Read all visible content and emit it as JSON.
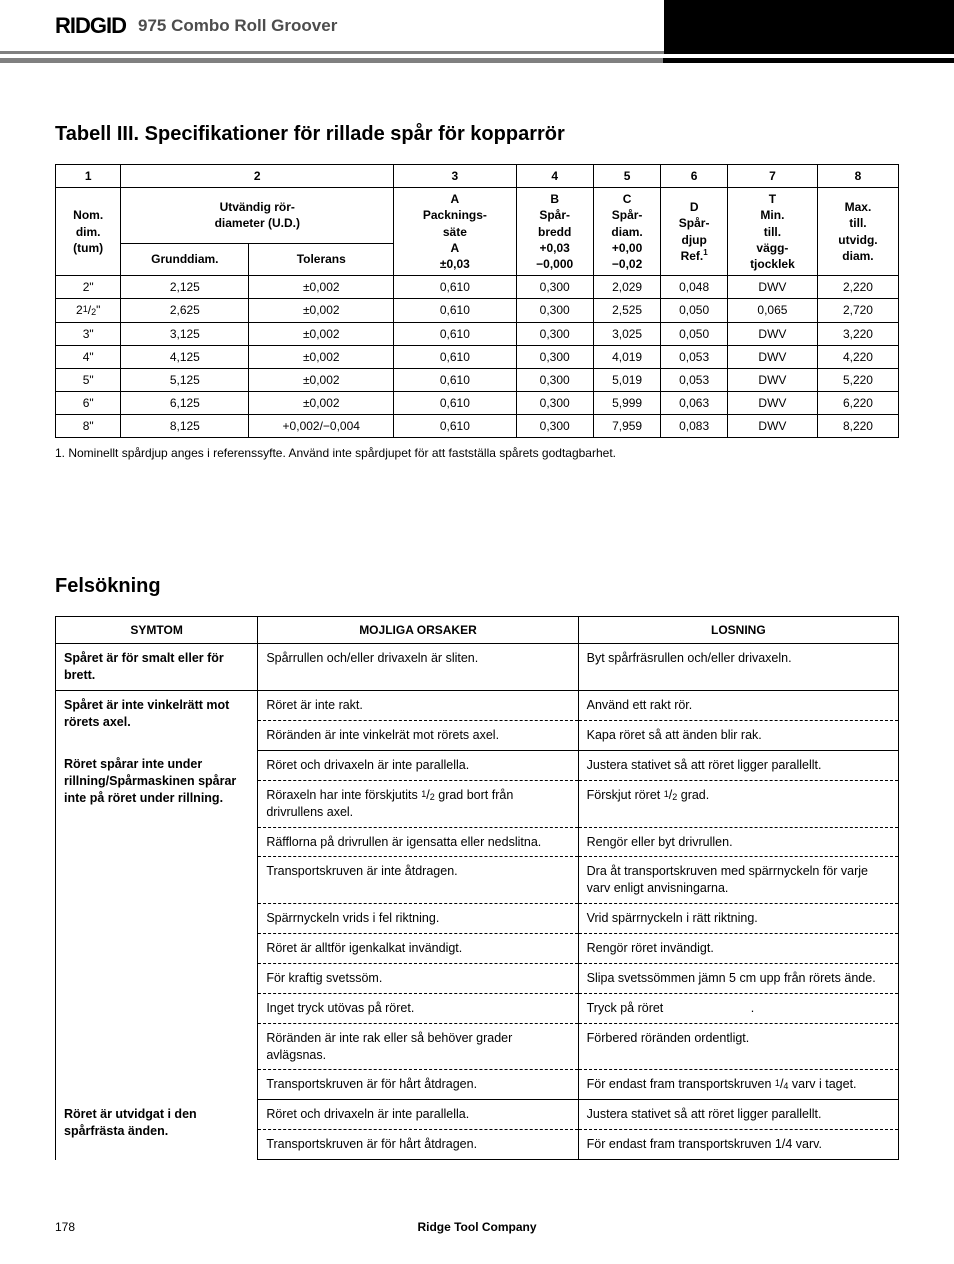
{
  "header": {
    "logo": "RIDGID",
    "title": "975 Combo Roll Groover"
  },
  "section1_title": "Tabell III. Specifikationer för rillade spår för kopparrör",
  "spec_table": {
    "col_nums": [
      "1",
      "2",
      "3",
      "4",
      "5",
      "6",
      "7",
      "8"
    ],
    "headers": {
      "c1": "Nom.\ndim.\n(tum)",
      "c2": "Utvändig rör-\ndiameter (U.D.)",
      "c2a": "Grunddiam.",
      "c2b": "Tolerans",
      "c3": "A\nPacknings-\nsäte\nA\n±0,03",
      "c4": "B\nSpår-\nbredd\n+0,03\n−0,000",
      "c5": "C\nSpår-\ndiam.\n+0,00\n−0,02",
      "c6": "D\nSpår-\ndjup\nRef.",
      "c6_sup": "1",
      "c7": "T\nMin.\ntill.\nvägg-\ntjocklek",
      "c8": "Max.\ntill.\nutvidg.\ndiam."
    },
    "rows": [
      {
        "nom": "2\"",
        "gd": "2,125",
        "tol": "±0,002",
        "a": "0,610",
        "b": "0,300",
        "c": "2,029",
        "d": "0,048",
        "t": "DWV",
        "max": "2,220"
      },
      {
        "nom": "2¹/₂\"",
        "gd": "2,625",
        "tol": "±0,002",
        "a": "0,610",
        "b": "0,300",
        "c": "2,525",
        "d": "0,050",
        "t": "0,065",
        "max": "2,720"
      },
      {
        "nom": "3\"",
        "gd": "3,125",
        "tol": "±0,002",
        "a": "0,610",
        "b": "0,300",
        "c": "3,025",
        "d": "0,050",
        "t": "DWV",
        "max": "3,220"
      },
      {
        "nom": "4\"",
        "gd": "4,125",
        "tol": "±0,002",
        "a": "0,610",
        "b": "0,300",
        "c": "4,019",
        "d": "0,053",
        "t": "DWV",
        "max": "4,220"
      },
      {
        "nom": "5\"",
        "gd": "5,125",
        "tol": "±0,002",
        "a": "0,610",
        "b": "0,300",
        "c": "5,019",
        "d": "0,053",
        "t": "DWV",
        "max": "5,220"
      },
      {
        "nom": "6\"",
        "gd": "6,125",
        "tol": "±0,002",
        "a": "0,610",
        "b": "0,300",
        "c": "5,999",
        "d": "0,063",
        "t": "DWV",
        "max": "6,220"
      },
      {
        "nom": "8\"",
        "gd": "8,125",
        "tol": "+0,002/−0,004",
        "a": "0,610",
        "b": "0,300",
        "c": "7,959",
        "d": "0,083",
        "t": "DWV",
        "max": "8,220"
      }
    ]
  },
  "footnote": "1. Nominellt spårdjup anges i referenssyfte. Använd inte spårdjupet för att fastställa spårets godtagbarhet.",
  "section2_title": "Felsökning",
  "trouble_headers": {
    "c1": "SYMTOM",
    "c2": "MOJLIGA ORSAKER",
    "c3": "LOSNING"
  },
  "trouble_groups": [
    {
      "symptom": "Spåret är för smalt eller för brett.",
      "rows": [
        {
          "cause": "Spårrullen och/eller drivaxeln är sliten.",
          "fix": "Byt spårfräsrullen och/eller drivaxeln."
        }
      ]
    },
    {
      "symptom": "Spåret är inte vinkelrätt mot rörets axel.",
      "rows": [
        {
          "cause": "Röret är inte rakt.",
          "fix": "Använd ett rakt rör."
        },
        {
          "cause": "Röränden är inte vinkelrät mot rörets axel.",
          "fix": "Kapa röret så att änden blir rak."
        }
      ]
    },
    {
      "symptom": "Röret spårar inte under rillning/Spårmaskinen spårar inte på röret under rillning.",
      "rows": [
        {
          "cause": "Röret och drivaxeln är inte parallella.",
          "fix": "Justera stativet så att röret ligger parallellt."
        },
        {
          "cause": "Röraxeln har inte förskjutits ¹/₂ grad bort från drivrullens axel.",
          "fix": "Förskjut röret ¹/₂ grad."
        },
        {
          "cause": "Räfflorna på drivrullen är igensatta eller nedslitna.",
          "fix": "Rengör eller byt drivrullen."
        },
        {
          "cause": "Transportskruven är inte åtdragen.",
          "fix": "Dra åt transportskruven med spärrnyckeln för varje varv enligt anvisningarna."
        },
        {
          "cause": "Spärrnyckeln vrids i fel riktning.",
          "fix": "Vrid spärrnyckeln i rätt riktning."
        },
        {
          "cause": "Röret är alltför igenkalkat invändigt.",
          "fix": "Rengör röret invändigt."
        },
        {
          "cause": "För kraftig svetssöm.",
          "fix": "Slipa svetssömmen jämn 5 cm upp från rörets ände."
        },
        {
          "cause": "Inget tryck utövas på röret.",
          "fix": "Tryck på röret       ."
        },
        {
          "cause": "Röränden är inte rak eller så behöver grader avlägsnas.",
          "fix": "Förbered röränden ordentligt."
        },
        {
          "cause": "Transportskruven är för hårt åtdragen.",
          "fix": "För endast fram transportskruven ¹/₄ varv i taget."
        }
      ]
    },
    {
      "symptom": "Röret är utvidgat i den spårfrästa änden.",
      "rows": [
        {
          "cause": "Röret och drivaxeln är inte parallella.",
          "fix": "Justera stativet så att röret ligger parallellt."
        },
        {
          "cause": "Transportskruven är för hårt åtdragen.",
          "fix": "För endast fram transportskruven 1/4 varv."
        }
      ]
    }
  ],
  "footer": {
    "page": "178",
    "company": "Ridge Tool Company"
  }
}
